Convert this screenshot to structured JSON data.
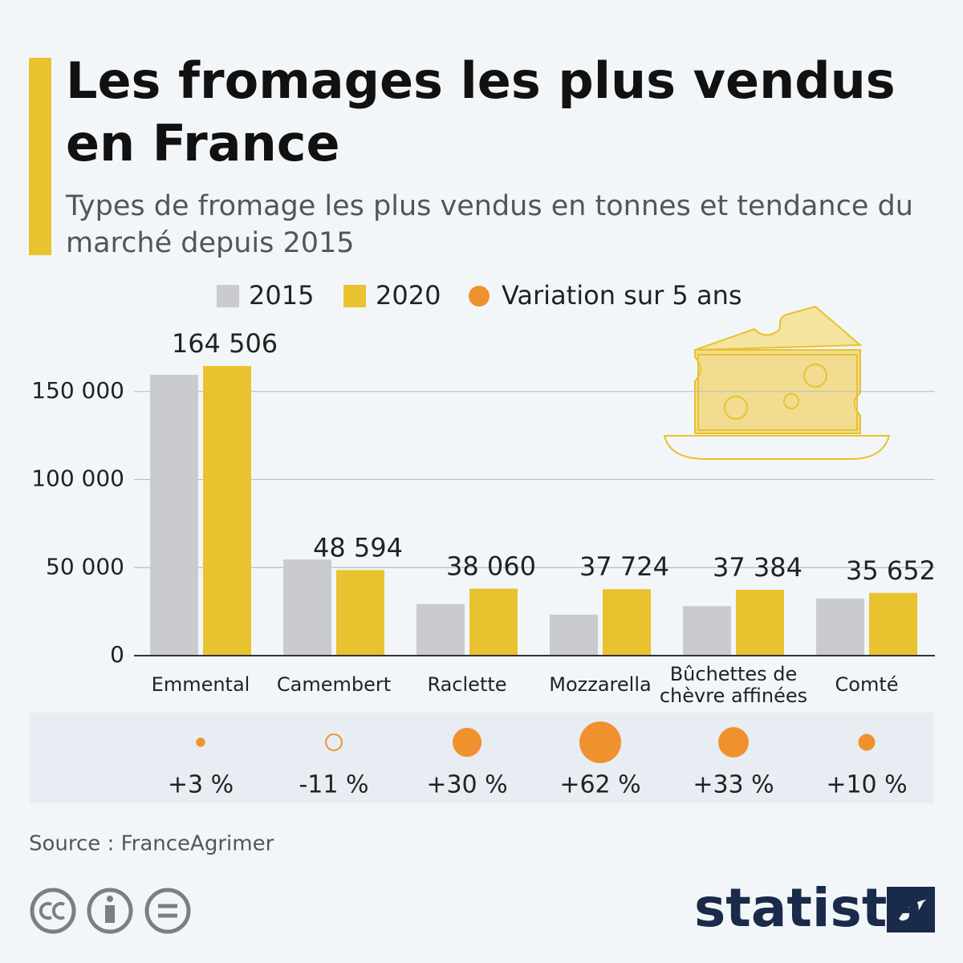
{
  "chart_data": {
    "type": "bar",
    "title": "Les fromages les plus vendus en France",
    "subtitle": "Types de fromage les plus vendus en tonnes et tendance du marché depuis 2015",
    "categories": [
      "Emmental",
      "Camembert",
      "Raclette",
      "Mozzarella",
      "Bûchettes de chèvre affinées",
      "Comté"
    ],
    "series": [
      {
        "name": "2015",
        "color": "#c9cbce",
        "values": [
          159500,
          54600,
          29300,
          23300,
          28100,
          32400
        ]
      },
      {
        "name": "2020",
        "color": "#e8c22f",
        "values": [
          164506,
          48594,
          38060,
          37724,
          37384,
          35652
        ],
        "value_labels": [
          "164 506",
          "48 594",
          "38 060",
          "37 724",
          "37 384",
          "35 652"
        ]
      }
    ],
    "variation": {
      "name": "Variation sur 5 ans",
      "color": "#ef922e",
      "values": [
        3,
        -11,
        30,
        62,
        33,
        10
      ],
      "value_labels": [
        "+3 %",
        "-11 %",
        "+30 %",
        "+62 %",
        "+33 %",
        "+10 %"
      ]
    },
    "ylim": [
      0,
      180000
    ],
    "yticks": [
      0,
      {
        "value": 50000,
        "label": "50 000"
      },
      {
        "value": 100000,
        "label": "100 000"
      },
      {
        "value": 150000,
        "label": "150 000"
      }
    ],
    "grid": true,
    "source": "Source : FranceAgrimer",
    "brand": "statista"
  }
}
